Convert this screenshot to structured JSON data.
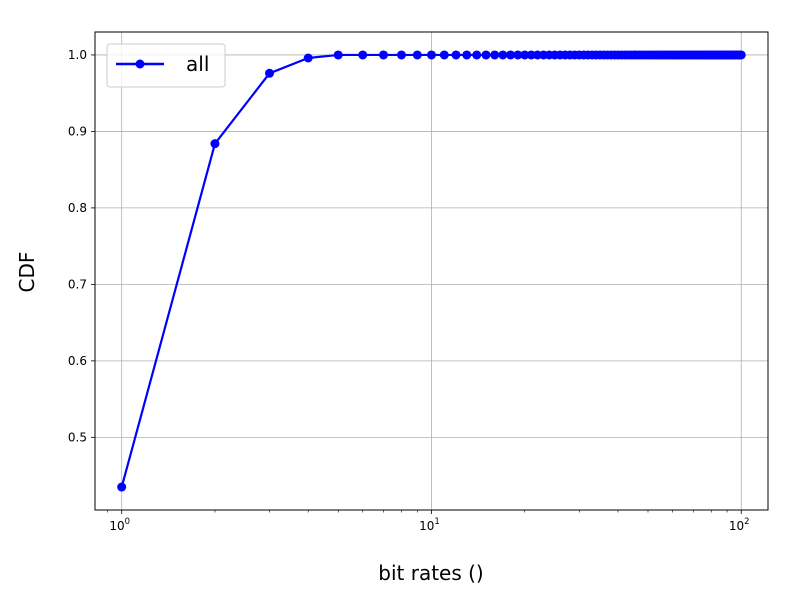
{
  "chart_data": {
    "type": "line",
    "title": "",
    "xlabel": "bit rates ()",
    "ylabel": "CDF",
    "xscale": "log",
    "xlim": [
      0.82,
      122
    ],
    "ylim": [
      0.405,
      1.03
    ],
    "grid": true,
    "legend_position": "top-left",
    "x_tick_labels": [
      {
        "value": 1,
        "mantissa": "10",
        "exponent": "0"
      },
      {
        "value": 10,
        "mantissa": "10",
        "exponent": "1"
      },
      {
        "value": 100,
        "mantissa": "10",
        "exponent": "2"
      }
    ],
    "y_ticks": [
      0.5,
      0.6,
      0.7,
      0.8,
      0.9,
      1.0
    ],
    "y_tick_labels": [
      "0.5",
      "0.6",
      "0.7",
      "0.8",
      "0.9",
      "1.0"
    ],
    "series": [
      {
        "name": "all",
        "color": "#0000ff",
        "marker": "circle",
        "x": [
          1,
          2,
          3,
          4,
          5,
          6,
          7,
          8,
          9,
          10,
          11,
          12,
          13,
          14,
          15,
          16,
          17,
          18,
          19,
          20,
          21,
          22,
          23,
          24,
          25,
          26,
          27,
          28,
          29,
          30,
          31,
          32,
          33,
          34,
          35,
          36,
          37,
          38,
          39,
          40,
          41,
          42,
          43,
          44,
          45,
          46,
          47,
          48,
          49,
          50,
          51,
          52,
          53,
          54,
          55,
          56,
          57,
          58,
          59,
          60,
          61,
          62,
          63,
          64,
          65,
          66,
          67,
          68,
          69,
          70,
          71,
          72,
          73,
          74,
          75,
          76,
          77,
          78,
          79,
          80,
          81,
          82,
          83,
          84,
          85,
          86,
          87,
          88,
          89,
          90,
          91,
          92,
          93,
          94,
          95,
          96,
          97,
          98,
          99,
          100
        ],
        "y": [
          0.435,
          0.884,
          0.976,
          0.996,
          1.0,
          1.0,
          1.0,
          1.0,
          1.0,
          1.0,
          1.0,
          1.0,
          1.0,
          1.0,
          1.0,
          1.0,
          1.0,
          1.0,
          1.0,
          1.0,
          1.0,
          1.0,
          1.0,
          1.0,
          1.0,
          1.0,
          1.0,
          1.0,
          1.0,
          1.0,
          1.0,
          1.0,
          1.0,
          1.0,
          1.0,
          1.0,
          1.0,
          1.0,
          1.0,
          1.0,
          1.0,
          1.0,
          1.0,
          1.0,
          1.0,
          1.0,
          1.0,
          1.0,
          1.0,
          1.0,
          1.0,
          1.0,
          1.0,
          1.0,
          1.0,
          1.0,
          1.0,
          1.0,
          1.0,
          1.0,
          1.0,
          1.0,
          1.0,
          1.0,
          1.0,
          1.0,
          1.0,
          1.0,
          1.0,
          1.0,
          1.0,
          1.0,
          1.0,
          1.0,
          1.0,
          1.0,
          1.0,
          1.0,
          1.0,
          1.0,
          1.0,
          1.0,
          1.0,
          1.0,
          1.0,
          1.0,
          1.0,
          1.0,
          1.0,
          1.0,
          1.0,
          1.0,
          1.0,
          1.0,
          1.0,
          1.0,
          1.0,
          1.0,
          1.0,
          1.0
        ]
      }
    ]
  }
}
